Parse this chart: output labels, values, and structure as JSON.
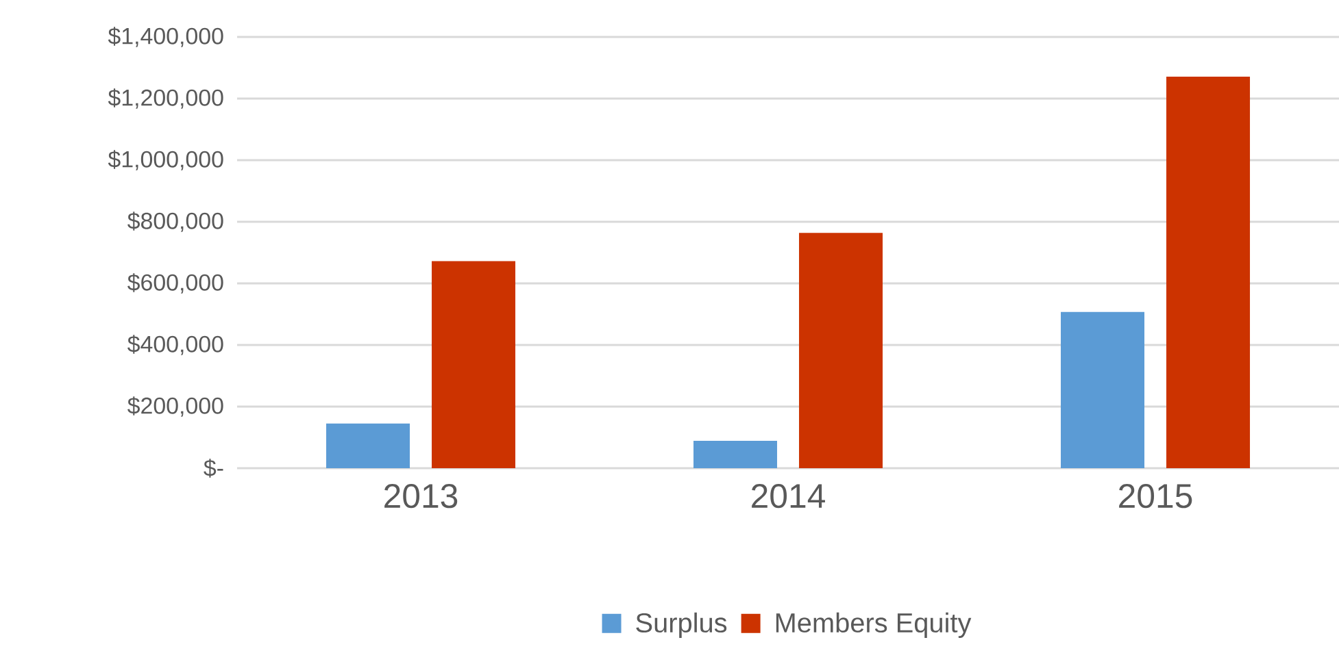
{
  "chart_data": {
    "type": "bar",
    "categories": [
      "2013",
      "2014",
      "2015"
    ],
    "series": [
      {
        "name": "Surplus",
        "color": "#5b9bd5",
        "values": [
          145000,
          89000,
          507000
        ]
      },
      {
        "name": "Members Equity",
        "color": "#cc3300",
        "values": [
          672000,
          764000,
          1271000
        ]
      }
    ],
    "ylim": [
      0,
      1400000
    ],
    "yticks": [
      {
        "value": 0,
        "label": "$-"
      },
      {
        "value": 200000,
        "label": "$200,000"
      },
      {
        "value": 400000,
        "label": "$400,000"
      },
      {
        "value": 600000,
        "label": "$600,000"
      },
      {
        "value": 800000,
        "label": "$800,000"
      },
      {
        "value": 1000000,
        "label": "$1,000,000"
      },
      {
        "value": 1200000,
        "label": "$1,200,000"
      },
      {
        "value": 1400000,
        "label": "$1,400,000"
      }
    ],
    "grid": "y",
    "legend": "bottom"
  }
}
